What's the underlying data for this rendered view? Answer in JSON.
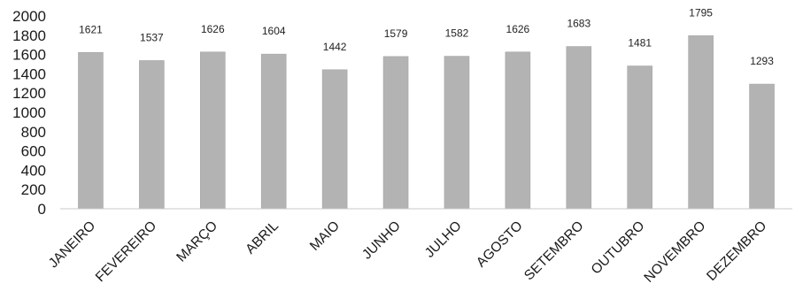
{
  "chart_data": {
    "type": "bar",
    "title": "",
    "xlabel": "",
    "ylabel": "",
    "categories": [
      "JANEIRO",
      "FEVEREIRO",
      "MARÇO",
      "ABRIL",
      "MAIO",
      "JUNHO",
      "JULHO",
      "AGOSTO",
      "SETEMBRO",
      "OUTUBRO",
      "NOVEMBRO",
      "DEZEMBRO"
    ],
    "values": [
      1621,
      1537,
      1626,
      1604,
      1442,
      1579,
      1582,
      1626,
      1683,
      1481,
      1795,
      1293
    ],
    "ylim": [
      0,
      2000
    ],
    "yticks": [
      "0",
      "200",
      "400",
      "600",
      "800",
      "1000",
      "1200",
      "1400",
      "1600",
      "1800",
      "2000"
    ],
    "data_labels": [
      "1621",
      "1537",
      "1626",
      "1604",
      "1442",
      "1579",
      "1582",
      "1626",
      "1683",
      "1481",
      "1795",
      "1293"
    ],
    "grid": false,
    "legend": "none",
    "colors": {
      "bar_fill": "#b3b3b3",
      "bar_edge": "#a6a6a6",
      "axis": "#c9c9c9",
      "text": "#1a1a1a"
    }
  }
}
